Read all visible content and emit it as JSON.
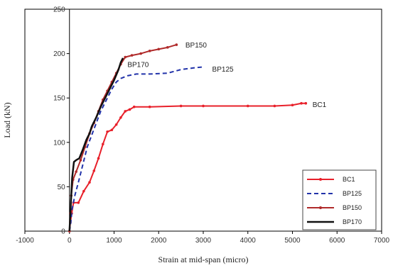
{
  "chart_data": {
    "type": "line",
    "xlabel": "Strain at mid-span (micro)",
    "ylabel": "Load (kN)",
    "xlim": [
      -1000,
      7000
    ],
    "ylim": [
      0,
      250
    ],
    "xticks": [
      -1000,
      0,
      1000,
      2000,
      3000,
      4000,
      5000,
      6000,
      7000
    ],
    "yticks": [
      0,
      50,
      100,
      150,
      200,
      250
    ],
    "grid": false,
    "legend_position": "bottom-right",
    "series": [
      {
        "name": "BC1",
        "color": "#e8202a",
        "dash": "solid",
        "marker": "dot",
        "label_text": "BC1",
        "label_at": [
          5450,
          143
        ],
        "points": [
          [
            0,
            0
          ],
          [
            20,
            10
          ],
          [
            50,
            20
          ],
          [
            90,
            32
          ],
          [
            200,
            32
          ],
          [
            320,
            45
          ],
          [
            450,
            55
          ],
          [
            550,
            68
          ],
          [
            650,
            82
          ],
          [
            750,
            98
          ],
          [
            850,
            112
          ],
          [
            950,
            114
          ],
          [
            1050,
            120
          ],
          [
            1150,
            128
          ],
          [
            1250,
            135
          ],
          [
            1350,
            137
          ],
          [
            1450,
            140
          ],
          [
            1800,
            140
          ],
          [
            2500,
            141
          ],
          [
            3000,
            141
          ],
          [
            4000,
            141
          ],
          [
            4600,
            141
          ],
          [
            5000,
            142
          ],
          [
            5200,
            144
          ],
          [
            5300,
            144
          ]
        ]
      },
      {
        "name": "BP125",
        "color": "#2233aa",
        "dash": "dashed",
        "marker": "none",
        "label_text": "BP125",
        "label_at": [
          3200,
          183
        ],
        "points": [
          [
            0,
            0
          ],
          [
            30,
            10
          ],
          [
            60,
            25
          ],
          [
            120,
            40
          ],
          [
            200,
            55
          ],
          [
            300,
            75
          ],
          [
            400,
            95
          ],
          [
            550,
            115
          ],
          [
            700,
            135
          ],
          [
            850,
            150
          ],
          [
            950,
            160
          ],
          [
            1050,
            168
          ],
          [
            1150,
            172
          ],
          [
            1300,
            175
          ],
          [
            1500,
            177
          ],
          [
            1800,
            177
          ],
          [
            2200,
            178
          ],
          [
            2500,
            182
          ],
          [
            2800,
            184
          ],
          [
            3000,
            185
          ]
        ]
      },
      {
        "name": "BP150",
        "color": "#b02a2a",
        "dash": "solid",
        "marker": "dot",
        "label_text": "BP150",
        "label_at": [
          2600,
          210
        ],
        "points": [
          [
            0,
            0
          ],
          [
            20,
            20
          ],
          [
            40,
            40
          ],
          [
            80,
            58
          ],
          [
            150,
            67
          ],
          [
            250,
            80
          ],
          [
            350,
            95
          ],
          [
            450,
            110
          ],
          [
            550,
            122
          ],
          [
            650,
            135
          ],
          [
            750,
            148
          ],
          [
            850,
            158
          ],
          [
            950,
            168
          ],
          [
            1050,
            178
          ],
          [
            1150,
            188
          ],
          [
            1250,
            196
          ],
          [
            1400,
            198
          ],
          [
            1600,
            200
          ],
          [
            1800,
            203
          ],
          [
            2000,
            205
          ],
          [
            2200,
            207
          ],
          [
            2400,
            210
          ]
        ]
      },
      {
        "name": "BP170",
        "color": "#111111",
        "dash": "solid",
        "marker": "none",
        "label_text": "BP170",
        "label_at": [
          1300,
          188
        ],
        "points": [
          [
            0,
            0
          ],
          [
            30,
            30
          ],
          [
            60,
            60
          ],
          [
            100,
            78
          ],
          [
            150,
            80
          ],
          [
            220,
            82
          ],
          [
            300,
            92
          ],
          [
            380,
            103
          ],
          [
            450,
            110
          ],
          [
            500,
            118
          ],
          [
            600,
            128
          ],
          [
            700,
            140
          ],
          [
            800,
            150
          ],
          [
            900,
            160
          ],
          [
            1000,
            170
          ],
          [
            1100,
            182
          ],
          [
            1150,
            190
          ],
          [
            1200,
            195
          ]
        ]
      }
    ]
  }
}
